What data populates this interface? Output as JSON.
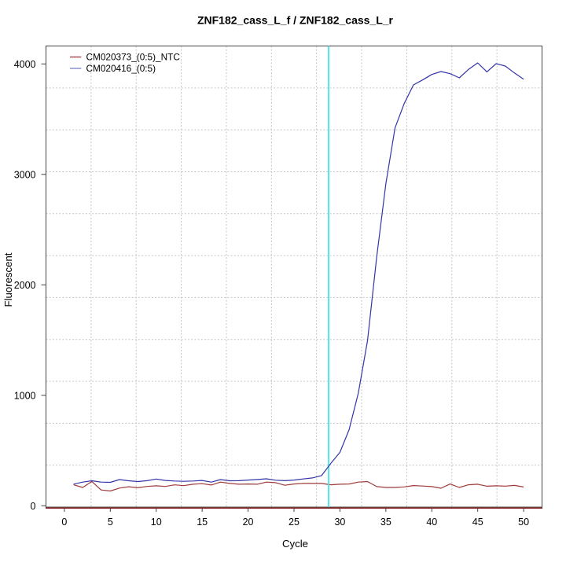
{
  "chart_data": {
    "type": "line",
    "title": "ZNF182_cass_L_f / ZNF182_cass_L_r",
    "xlabel": "Cycle",
    "ylabel": "Fluorescent",
    "x_ticks": [
      0,
      5,
      10,
      15,
      20,
      25,
      30,
      35,
      40,
      45,
      50
    ],
    "y_ticks": [
      0,
      1000,
      2000,
      3000,
      4000
    ],
    "xlim": [
      -2,
      52
    ],
    "ylim": [
      -12.1,
      4162.3
    ],
    "grid": {
      "style": "dotted",
      "nx": 11,
      "ny": 11,
      "color": "#bfbfbf"
    },
    "threshold_line": {
      "x": 28.77,
      "color": "#3fe8ec"
    },
    "zero_line": {
      "y": 0,
      "color": "#8b2a2a"
    },
    "legend_position": "top-left",
    "x": [
      1,
      2,
      3,
      4,
      5,
      6,
      7,
      8,
      9,
      10,
      11,
      12,
      13,
      14,
      15,
      16,
      17,
      18,
      19,
      20,
      21,
      22,
      23,
      24,
      25,
      26,
      27,
      28,
      29,
      30,
      31,
      32,
      33,
      34,
      35,
      36,
      37,
      38,
      39,
      40,
      41,
      42,
      43,
      44,
      45,
      46,
      47,
      48,
      49,
      50
    ],
    "series": [
      {
        "name": "CM020373_(0:5)_NTC",
        "color": "#9e3a3a",
        "legend_color": "#a04444",
        "values": [
          190,
          166,
          220,
          143,
          134,
          160,
          172,
          163,
          175,
          181,
          175,
          189,
          182,
          195,
          200,
          188,
          214,
          202,
          195,
          197,
          195,
          214,
          209,
          186,
          197,
          202,
          202,
          202,
          190,
          195,
          197,
          214,
          219,
          174,
          166,
          166,
          171,
          183,
          179,
          174,
          159,
          197,
          166,
          190,
          195,
          177,
          181,
          178,
          184,
          170
        ]
      },
      {
        "name": "CM020416_(0:5)",
        "color": "#3434aa",
        "legend_color": "#8686cc",
        "values": [
          196,
          214,
          226,
          214,
          212,
          237,
          226,
          219,
          227,
          242,
          229,
          224,
          221,
          224,
          229,
          214,
          237,
          226,
          227,
          233,
          238,
          244,
          231,
          227,
          233,
          243,
          252,
          273,
          383,
          483,
          689,
          1020,
          1494,
          2253,
          2918,
          3421,
          3641,
          3810,
          3855,
          3905,
          3931,
          3912,
          3874,
          3950,
          4009,
          3928,
          4002,
          3981,
          3918,
          3862
        ]
      }
    ]
  }
}
